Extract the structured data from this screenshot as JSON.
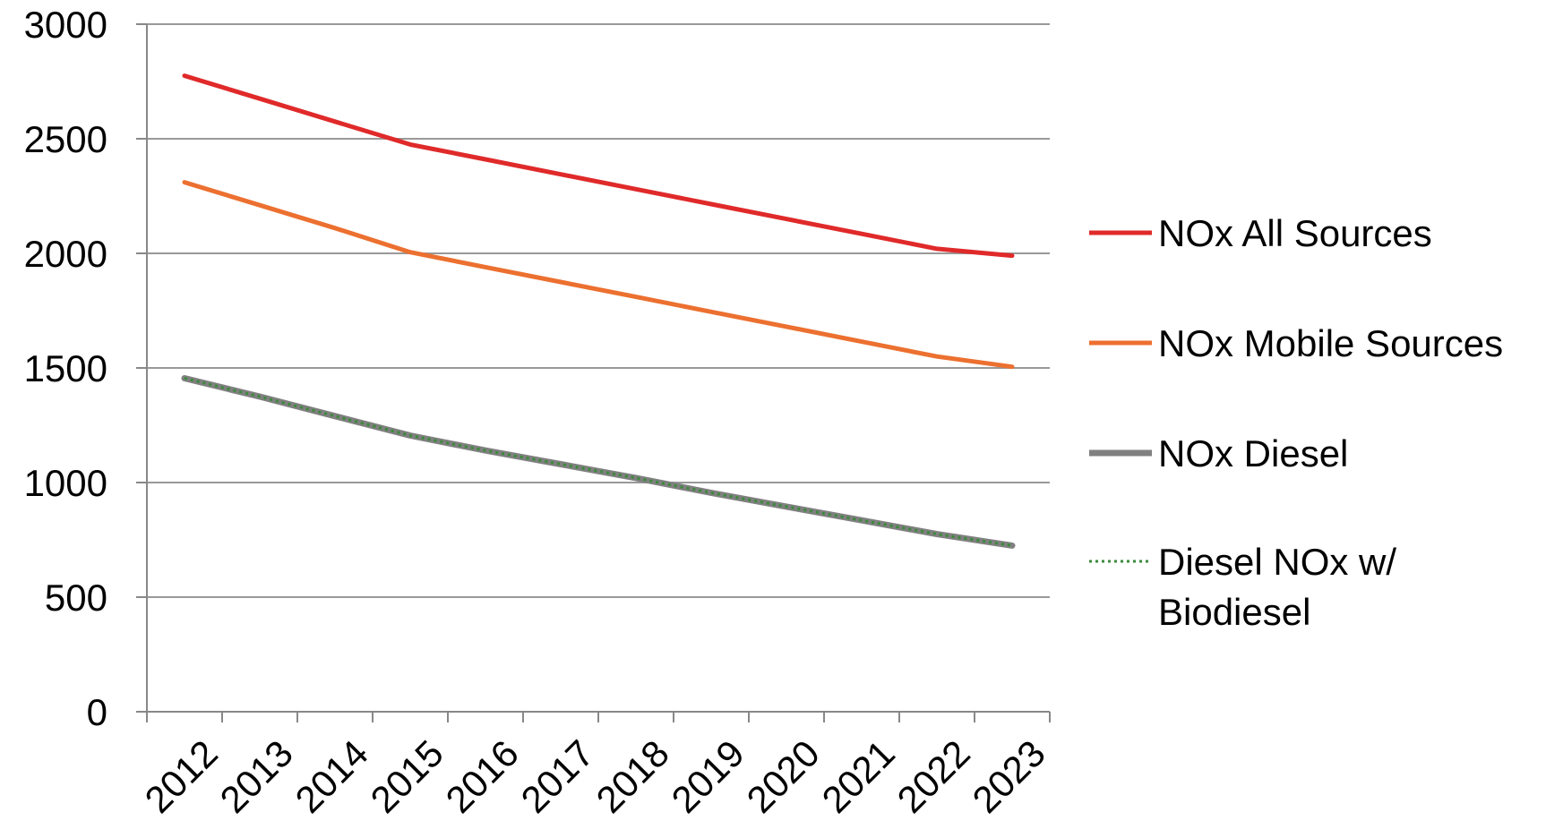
{
  "chart_data": {
    "type": "line",
    "title": "",
    "xlabel": "",
    "ylabel": "",
    "categories": [
      "2012",
      "2013",
      "2014",
      "2015",
      "2016",
      "2017",
      "2018",
      "2019",
      "2020",
      "2021",
      "2022",
      "2023"
    ],
    "ylim": [
      0,
      3000
    ],
    "yticks": [
      "0",
      "500",
      "1000",
      "1500",
      "2000",
      "2500",
      "3000"
    ],
    "grid": "horizontal",
    "legend_position": "right",
    "series": [
      {
        "name": "NOx All Sources",
        "color": "#e02a2a",
        "style": "solid",
        "values": [
          2775,
          2675,
          2575,
          2475,
          2410,
          2345,
          2280,
          2215,
          2150,
          2085,
          2020,
          1990
        ]
      },
      {
        "name": "NOx Mobile Sources",
        "color": "#ec7030",
        "style": "solid",
        "values": [
          2310,
          2210,
          2110,
          2005,
          1940,
          1875,
          1810,
          1745,
          1680,
          1615,
          1550,
          1505
        ]
      },
      {
        "name": "NOx Diesel",
        "color": "#808080",
        "style": "thick",
        "values": [
          1455,
          1375,
          1290,
          1205,
          1140,
          1080,
          1020,
          955,
          895,
          835,
          775,
          725
        ]
      },
      {
        "name": "Diesel NOx w/ Biodiesel",
        "legend_lines": [
          "Diesel NOx w/",
          "Biodiesel"
        ],
        "color": "#3a8a3a",
        "style": "dotted",
        "values": [
          1455,
          1375,
          1290,
          1205,
          1140,
          1080,
          1020,
          955,
          895,
          835,
          775,
          725
        ]
      }
    ]
  }
}
